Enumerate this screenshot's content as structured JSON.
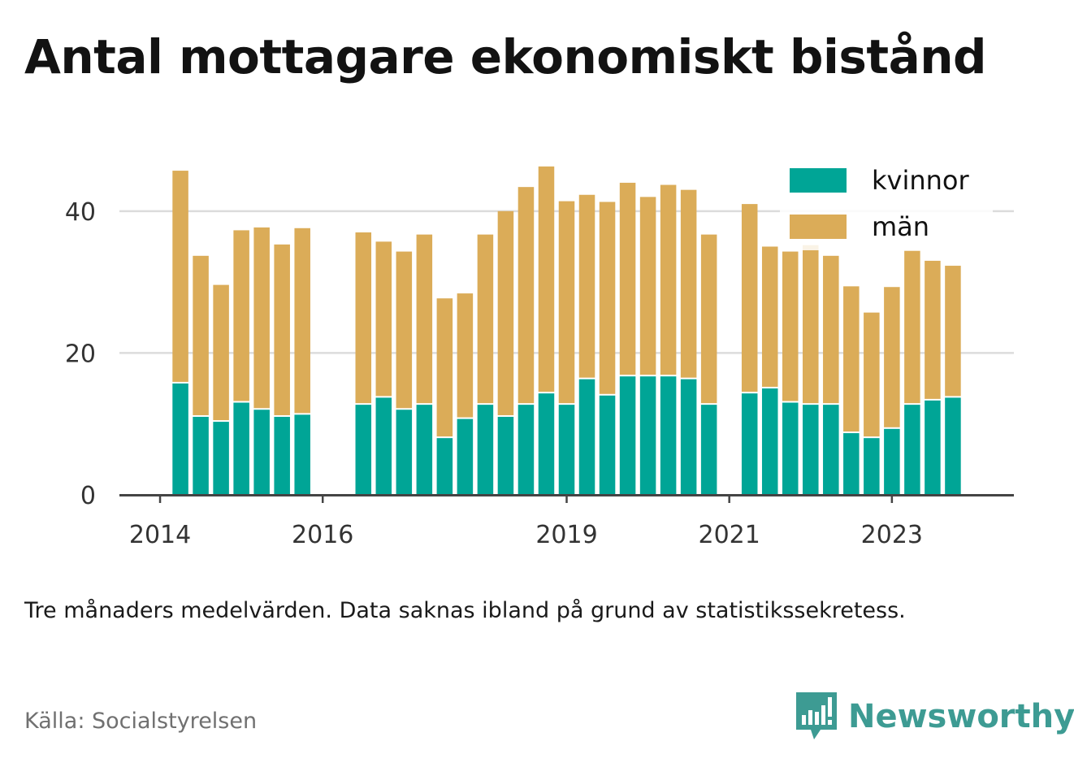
{
  "title": "Antal mottagare ekonomiskt bistånd",
  "note": "Tre månaders medelvärden. Data saknas ibland på grund av statistikssekretess.",
  "source": "Källa: Socialstyrelsen",
  "brand": "Newsworthy",
  "colors": {
    "kvinnor": "#00a596",
    "man": "#dbac58",
    "grid": "#dcdcdc",
    "axis": "#444444",
    "brand": "#3d9b93"
  },
  "chart_data": {
    "type": "bar",
    "stacked": true,
    "x": [
      2014.25,
      2014.5,
      2014.75,
      2015.0,
      2015.25,
      2015.5,
      2015.75,
      2016.5,
      2016.75,
      2017.0,
      2017.25,
      2017.5,
      2017.75,
      2018.0,
      2018.25,
      2018.5,
      2018.75,
      2019.0,
      2019.25,
      2019.5,
      2019.75,
      2020.0,
      2020.25,
      2020.5,
      2020.75,
      2021.25,
      2021.5,
      2021.75,
      2022.0,
      2022.25,
      2022.5,
      2022.75,
      2023.0,
      2023.25,
      2023.5,
      2023.75
    ],
    "xticks": [
      2014,
      2016,
      2019,
      2021,
      2023
    ],
    "xlim": [
      2013.5,
      2024.5
    ],
    "ylim": [
      0,
      48
    ],
    "yticks": [
      0,
      20,
      40
    ],
    "grid": true,
    "legend": "top-right",
    "series": [
      {
        "name": "kvinnor",
        "values": [
          15.7,
          11.0,
          10.3,
          13.0,
          12.0,
          11.0,
          11.3,
          12.7,
          13.7,
          12.0,
          12.7,
          8.0,
          10.7,
          12.7,
          11.0,
          12.7,
          14.3,
          12.7,
          16.3,
          14.0,
          16.7,
          16.7,
          16.7,
          16.3,
          12.7,
          14.3,
          15.0,
          13.0,
          12.7,
          12.7,
          8.7,
          8.0,
          9.3,
          12.7,
          13.3,
          13.7
        ]
      },
      {
        "name": "män",
        "values": [
          30.0,
          22.7,
          19.3,
          24.3,
          25.7,
          24.3,
          26.3,
          24.3,
          22.0,
          22.3,
          24.0,
          19.7,
          17.7,
          24.0,
          29.0,
          30.7,
          32.0,
          28.7,
          26.0,
          27.3,
          27.3,
          25.3,
          27.0,
          26.7,
          24.0,
          26.7,
          20.0,
          21.3,
          22.5,
          21.0,
          20.7,
          17.7,
          20.0,
          21.7,
          19.7,
          18.6
        ]
      }
    ]
  }
}
